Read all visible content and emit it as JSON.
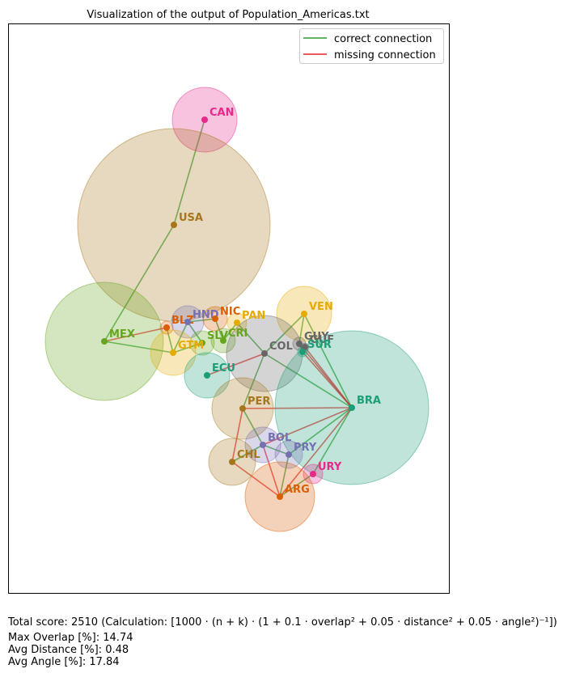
{
  "title": "Visualization of the output of Population_Americas.txt",
  "legend": [
    {
      "label": "correct connection"
    },
    {
      "label": "missing connection"
    }
  ],
  "nodes": [
    {
      "label": "CAN"
    },
    {
      "label": "USA"
    },
    {
      "label": "MEX"
    },
    {
      "label": "BLZ"
    },
    {
      "label": "HND"
    },
    {
      "label": "NIC"
    },
    {
      "label": "PAN"
    },
    {
      "label": "VEN"
    },
    {
      "label": "SLV"
    },
    {
      "label": "CRI"
    },
    {
      "label": "GTM"
    },
    {
      "label": "COL"
    },
    {
      "label": "GUY"
    },
    {
      "label": "GUF"
    },
    {
      "label": "SUR"
    },
    {
      "label": "ECU"
    },
    {
      "label": "BRA"
    },
    {
      "label": "PER"
    },
    {
      "label": "BOL"
    },
    {
      "label": "PRY"
    },
    {
      "label": "CHL"
    },
    {
      "label": "URY"
    },
    {
      "label": "ARG"
    }
  ],
  "footer": {
    "score_label": "Total score:",
    "score": 2510,
    "calculation": "(Calculation: [1000 · (n + k) · (1 + 0.1 · overlap² + 0.05 · distance² + 0.05 · angle²)⁻¹])",
    "metrics": [
      {
        "label": "Max Overlap [%]:",
        "value": 14.74
      },
      {
        "label": "Avg Distance [%]:",
        "value": 0.48
      },
      {
        "label": "Avg Angle [%]:",
        "value": 17.84
      }
    ]
  }
}
